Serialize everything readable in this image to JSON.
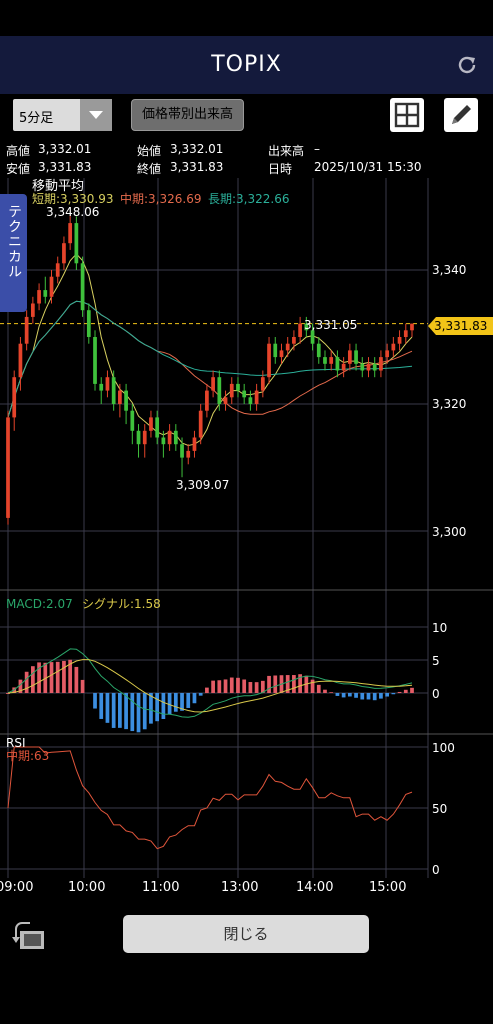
{
  "header": {
    "title": "TOPIX"
  },
  "toolbar": {
    "interval_label": "5分足",
    "volume_button_label": "価格帯別出来高"
  },
  "info": {
    "high_label": "高値",
    "high_value": "3,332.01",
    "open_label": "始値",
    "open_value": "3,332.01",
    "volume_label": "出来高",
    "volume_value": "–",
    "low_label": "安値",
    "low_value": "3,331.83",
    "close_label": "終値",
    "close_value": "3,331.83",
    "datetime_label": "日時",
    "datetime_value": "2025/10/31 15:30"
  },
  "side_tab": {
    "label": "テクニカル"
  },
  "price_panel": {
    "indicator_title": "移動平均",
    "short_label": "短期:3,330.93",
    "mid_label": "中期:3,326.69",
    "long_label": "長期:3,322.66",
    "annotation_high": "3,348.06",
    "annotation_low": "3,309.07",
    "annotation_last": "3,331.05",
    "current_badge": "3,331.83",
    "y_ticks": [
      "3,340",
      "3,320",
      "3,300"
    ]
  },
  "macd_panel": {
    "macd_label": "MACD:2.07",
    "signal_label": "シグナル:1.58",
    "y_ticks": [
      "10",
      "5",
      "0"
    ]
  },
  "rsi_panel": {
    "title": "RSI",
    "mid_label": "中期:63",
    "y_ticks": [
      "100",
      "50",
      "0"
    ]
  },
  "x_ticks": [
    "09:00",
    "10:00",
    "11:00",
    "13:00",
    "14:00",
    "15:00"
  ],
  "footer": {
    "close_label": "閉じる"
  },
  "colors": {
    "up": "#e5442b",
    "down": "#3fc13c",
    "short_ma": "#d8d060",
    "mid_ma": "#e46a4c",
    "long_ma": "#2bb09a",
    "macd": "#2aa66a",
    "signal": "#d9c84a",
    "hist_pos": "#e45c66",
    "hist_neg": "#3c8ee0",
    "rsi": "#e0553b",
    "badge": "#f2c418"
  },
  "chart_data": {
    "type": "candlestick",
    "x": [
      "09:00",
      "09:05",
      "09:10",
      "09:15",
      "09:20",
      "09:25",
      "09:30",
      "09:35",
      "09:40",
      "09:45",
      "09:50",
      "09:55",
      "10:00",
      "10:05",
      "10:10",
      "10:15",
      "10:20",
      "10:25",
      "10:30",
      "10:35",
      "10:40",
      "10:45",
      "10:50",
      "10:55",
      "11:00",
      "11:05",
      "11:10",
      "11:15",
      "11:20",
      "11:25",
      "12:30",
      "12:35",
      "12:40",
      "12:45",
      "12:50",
      "12:55",
      "13:00",
      "13:05",
      "13:10",
      "13:15",
      "13:20",
      "13:25",
      "13:30",
      "13:35",
      "13:40",
      "13:45",
      "13:50",
      "13:55",
      "14:00",
      "14:05",
      "14:10",
      "14:15",
      "14:20",
      "14:25",
      "14:30",
      "14:35",
      "14:40",
      "14:45",
      "14:50",
      "14:55",
      "15:00",
      "15:05",
      "15:10",
      "15:15",
      "15:20",
      "15:25"
    ],
    "open": [
      3303,
      3318,
      3324,
      3329,
      3333,
      3335,
      3337,
      3336,
      3339,
      3341,
      3344,
      3347,
      3341,
      3334,
      3330,
      3323,
      3322,
      3324,
      3320,
      3322,
      3319,
      3316,
      3314,
      3316,
      3318,
      3315,
      3314,
      3316,
      3314,
      3312,
      3313,
      3315,
      3319,
      3322,
      3324,
      3320,
      3321,
      3323,
      3322,
      3321,
      3320,
      3322,
      3324,
      3329,
      3327,
      3328,
      3329,
      3330,
      3332,
      3331,
      3329,
      3327,
      3326,
      3327,
      3325,
      3326,
      3328,
      3326,
      3325,
      3326,
      3325,
      3327,
      3328,
      3329,
      3330,
      3331
    ],
    "close": [
      3318,
      3324,
      3329,
      3333,
      3335,
      3337,
      3336,
      3339,
      3341,
      3344,
      3347,
      3341,
      3334,
      3330,
      3323,
      3322,
      3324,
      3320,
      3322,
      3319,
      3316,
      3314,
      3316,
      3318,
      3315,
      3314,
      3316,
      3314,
      3312,
      3313,
      3315,
      3319,
      3322,
      3324,
      3320,
      3321,
      3323,
      3322,
      3321,
      3320,
      3322,
      3324,
      3329,
      3327,
      3328,
      3329,
      3330,
      3332,
      3331,
      3329,
      3327,
      3326,
      3327,
      3325,
      3326,
      3328,
      3326,
      3325,
      3326,
      3325,
      3327,
      3328,
      3329,
      3330,
      3331,
      3332
    ],
    "high": [
      3319,
      3325,
      3330,
      3334,
      3336,
      3338,
      3339,
      3340,
      3342,
      3345,
      3348.06,
      3348,
      3342,
      3335,
      3331,
      3324,
      3325,
      3325,
      3323,
      3323,
      3320,
      3317,
      3317,
      3319,
      3319,
      3316,
      3317,
      3317,
      3315,
      3314,
      3316,
      3320,
      3323,
      3325,
      3325,
      3322,
      3324,
      3324,
      3323,
      3322,
      3323,
      3325,
      3330,
      3330,
      3329,
      3330,
      3331,
      3333,
      3333,
      3332,
      3330,
      3328,
      3328,
      3328,
      3327,
      3329,
      3329,
      3327,
      3327,
      3327,
      3328,
      3329,
      3330,
      3331,
      3332,
      3332.01
    ],
    "low": [
      3302,
      3316,
      3322,
      3328,
      3332,
      3334,
      3335,
      3335,
      3338,
      3340,
      3343,
      3340,
      3333,
      3329,
      3322,
      3320,
      3321,
      3319,
      3318,
      3317,
      3314,
      3312,
      3312,
      3315,
      3314,
      3312,
      3313,
      3313,
      3309.07,
      3311,
      3312,
      3314,
      3318,
      3321,
      3319,
      3319,
      3320,
      3321,
      3320,
      3319,
      3319,
      3321,
      3323,
      3326,
      3326,
      3327,
      3328,
      3329,
      3330,
      3328,
      3326,
      3325,
      3325,
      3324,
      3324,
      3325,
      3325,
      3324,
      3324,
      3324,
      3324,
      3326,
      3327,
      3328,
      3329,
      3330
    ],
    "y_range": [
      3293,
      3352
    ],
    "short_ma_last": 3330.93,
    "mid_ma_last": 3326.69,
    "long_ma_last": 3322.66,
    "macd_last": 2.07,
    "signal_last": 1.58,
    "rsi_last": 63
  }
}
